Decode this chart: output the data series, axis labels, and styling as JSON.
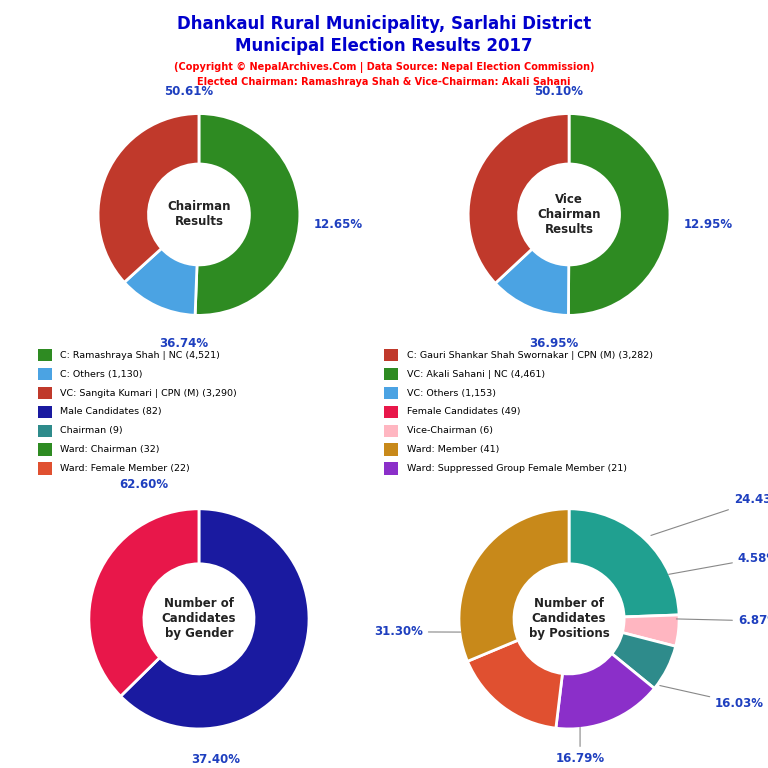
{
  "title_line1": "Dhankaul Rural Municipality, Sarlahi District",
  "title_line2": "Municipal Election Results 2017",
  "title_color": "#0000CD",
  "subtitle1": "(Copyright © NepalArchives.Com | Data Source: Nepal Election Commission)",
  "subtitle2": "Elected Chairman: Ramashraya Shah & Vice-Chairman: Akali Sahani",
  "subtitle_color": "#FF0000",
  "chairman_slices": [
    50.61,
    12.65,
    36.74
  ],
  "chairman_colors": [
    "#2E8B22",
    "#4BA3E3",
    "#C0392B"
  ],
  "chairman_center_text": "Chairman\nResults",
  "vc_slices": [
    50.1,
    12.95,
    36.95
  ],
  "vc_colors": [
    "#2E8B22",
    "#4BA3E3",
    "#C0392B"
  ],
  "vc_center_text": "Vice\nChairman\nResults",
  "gender_slices": [
    62.6,
    37.4
  ],
  "gender_colors": [
    "#1A1AA0",
    "#E8174A"
  ],
  "gender_center_text": "Number of\nCandidates\nby Gender",
  "positions_slices": [
    24.43,
    4.58,
    6.87,
    16.03,
    16.79,
    31.3
  ],
  "positions_colors": [
    "#20A090",
    "#FFB6C1",
    "#2E8B8B",
    "#8B2FC9",
    "#E05030",
    "#C8891A"
  ],
  "positions_center_text": "Number of\nCandidates\nby Positions",
  "legend_left": [
    {
      "label": "C: Ramashraya Shah | NC (4,521)",
      "color": "#2E8B22"
    },
    {
      "label": "C: Others (1,130)",
      "color": "#4BA3E3"
    },
    {
      "label": "VC: Sangita Kumari | CPN (M) (3,290)",
      "color": "#C0392B"
    },
    {
      "label": "Male Candidates (82)",
      "color": "#1A1AA0"
    },
    {
      "label": "Chairman (9)",
      "color": "#2E8B8B"
    },
    {
      "label": "Ward: Chairman (32)",
      "color": "#2E8B22"
    },
    {
      "label": "Ward: Female Member (22)",
      "color": "#E05030"
    }
  ],
  "legend_right": [
    {
      "label": "C: Gauri Shankar Shah Swornakar | CPN (M) (3,282)",
      "color": "#C0392B"
    },
    {
      "label": "VC: Akali Sahani | NC (4,461)",
      "color": "#2E8B22"
    },
    {
      "label": "VC: Others (1,153)",
      "color": "#4BA3E3"
    },
    {
      "label": "Female Candidates (49)",
      "color": "#E8174A"
    },
    {
      "label": "Vice-Chairman (6)",
      "color": "#FFB6C1"
    },
    {
      "label": "Ward: Member (41)",
      "color": "#C8891A"
    },
    {
      "label": "Ward: Suppressed Group Female Member (21)",
      "color": "#8B2FC9"
    }
  ]
}
